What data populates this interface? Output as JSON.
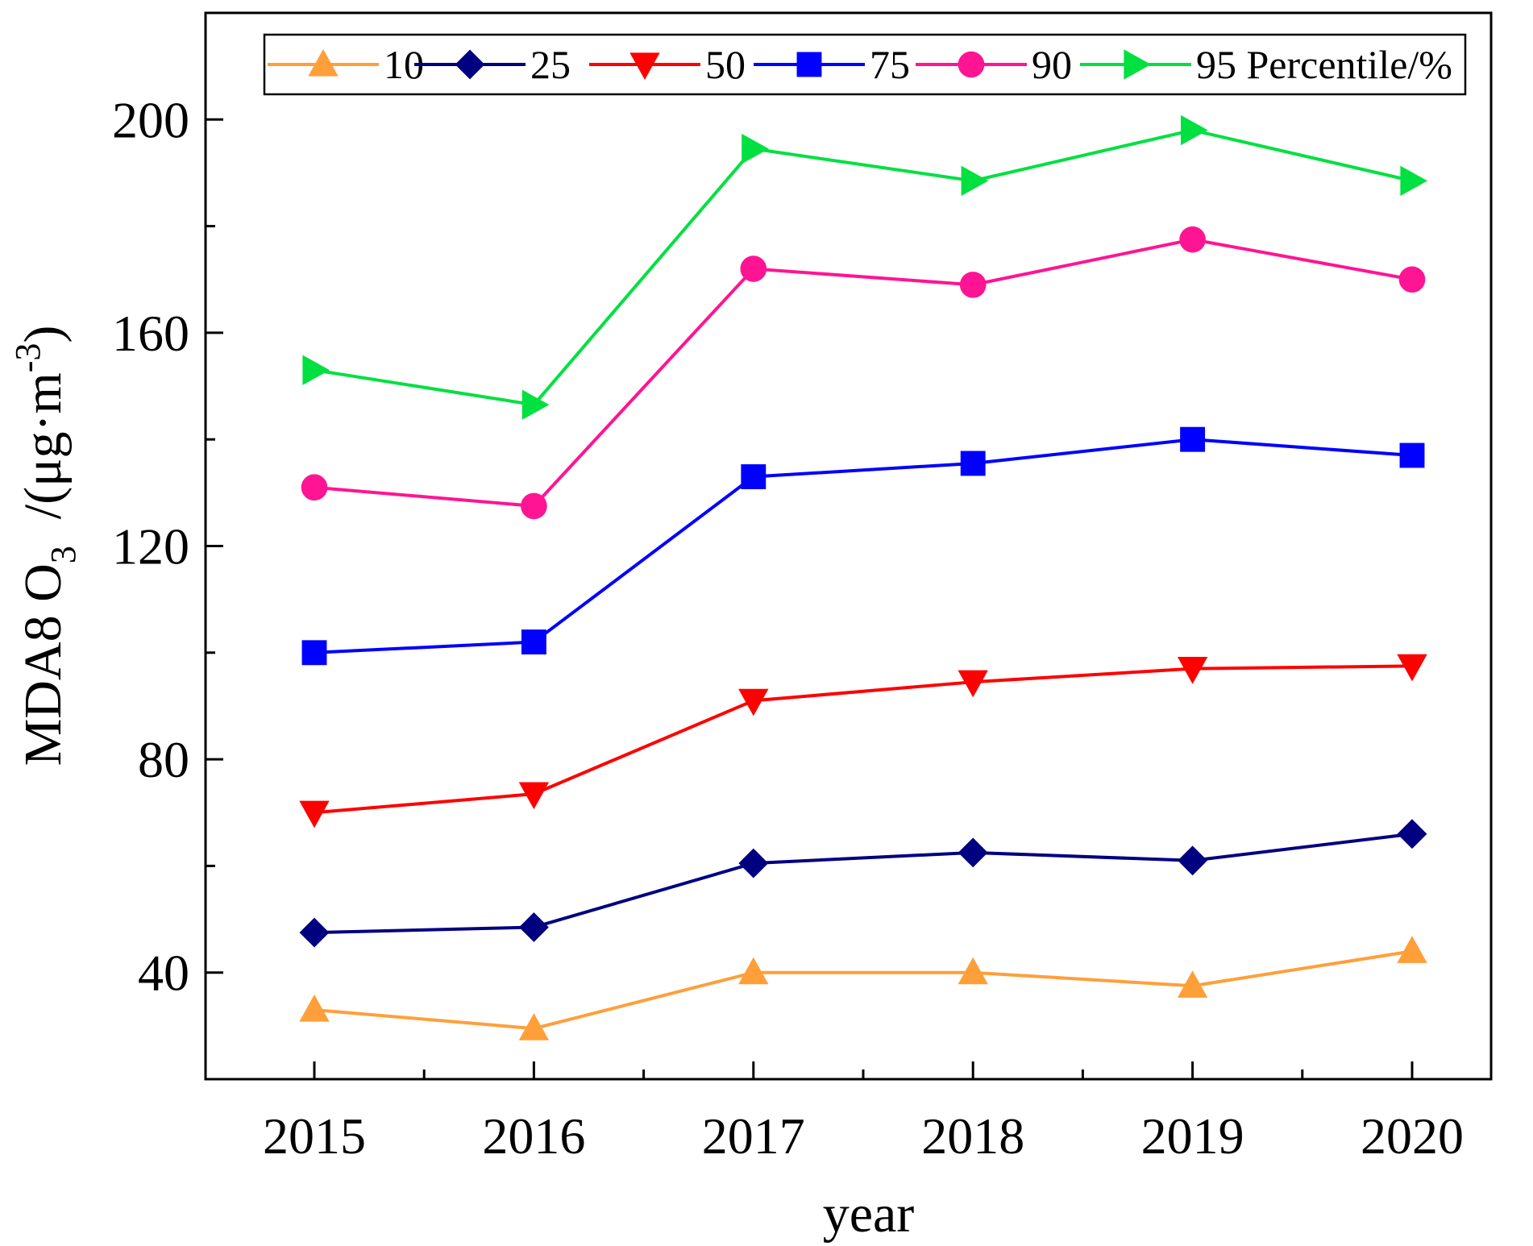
{
  "chart_data": {
    "type": "line",
    "title": "",
    "xlabel": "year",
    "ylabel": {
      "main": "MDA8 O",
      "sub": "3",
      "units_prefix": "/(μg·m",
      "units_sup": "-3",
      "units_suffix": ")"
    },
    "categories": [
      "2015",
      "2016",
      "2017",
      "2018",
      "2019",
      "2020"
    ],
    "ylim": [
      20,
      220
    ],
    "yticks": [
      40,
      80,
      120,
      160,
      200
    ],
    "grid": false,
    "legend_position": "top",
    "legend_suffix": "Percentile/%",
    "series": [
      {
        "name": "10",
        "color": "#FF9F3A",
        "marker": "triangle-up",
        "values": [
          33,
          29.5,
          40,
          40,
          37.5,
          44
        ]
      },
      {
        "name": "25",
        "color": "#000080",
        "marker": "diamond",
        "values": [
          47.5,
          48.5,
          60.5,
          62.5,
          61,
          66
        ]
      },
      {
        "name": "50",
        "color": "#FF0000",
        "marker": "triangle-down",
        "values": [
          70,
          73.5,
          91,
          94.5,
          97,
          97.5
        ]
      },
      {
        "name": "75",
        "color": "#0000FF",
        "marker": "square",
        "values": [
          100,
          102,
          133,
          135.5,
          140,
          137
        ]
      },
      {
        "name": "90",
        "color": "#FF1493",
        "marker": "circle",
        "values": [
          131,
          127.5,
          172,
          169,
          177.5,
          170
        ]
      },
      {
        "name": "95",
        "color": "#00E040",
        "marker": "triangle-right",
        "values": [
          153,
          146.5,
          194.5,
          188.5,
          198,
          188.5
        ]
      }
    ]
  }
}
